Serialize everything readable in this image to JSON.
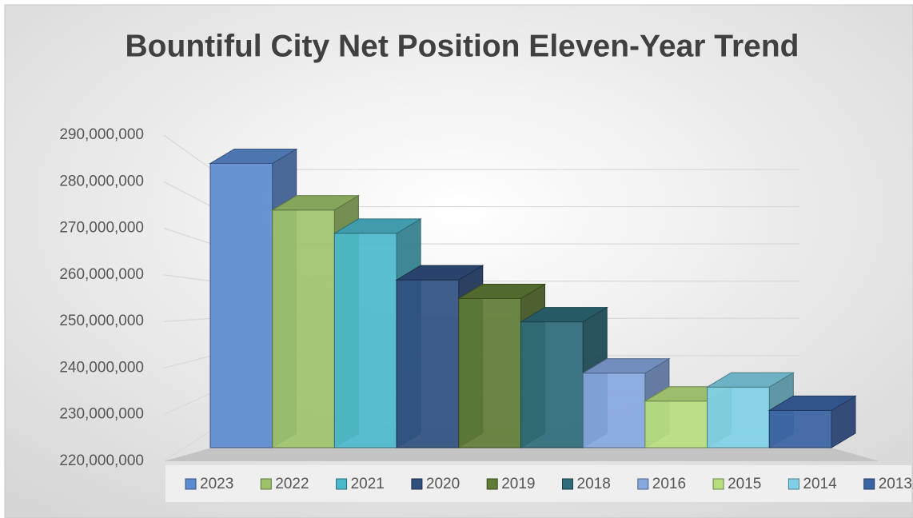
{
  "chart_data": {
    "type": "bar3d",
    "title": "Bountiful City Net Position Eleven-Year Trend",
    "categories": [
      "2023",
      "2022",
      "2021",
      "2020",
      "2019",
      "2018",
      "2016",
      "2015",
      "2014",
      "2013"
    ],
    "values": [
      281000000,
      271000000,
      266000000,
      256000000,
      252000000,
      247000000,
      236000000,
      230000000,
      233000000,
      228000000
    ],
    "colors": [
      "#5b8bd0",
      "#9dc36a",
      "#4bb8cc",
      "#2f4f7f",
      "#607c35",
      "#2d6b78",
      "#86a7e0",
      "#b7de7e",
      "#7fd0e6",
      "#3a63a3"
    ],
    "ylim": [
      220000000,
      290000000
    ],
    "yticks": [
      {
        "value": 220000000,
        "label": "220,000,000"
      },
      {
        "value": 230000000,
        "label": "230,000,000"
      },
      {
        "value": 240000000,
        "label": "240,000,000"
      },
      {
        "value": 250000000,
        "label": "250,000,000"
      },
      {
        "value": 260000000,
        "label": "260,000,000"
      },
      {
        "value": 270000000,
        "label": "270,000,000"
      },
      {
        "value": 280000000,
        "label": "280,000,000"
      },
      {
        "value": 290000000,
        "label": "290,000,000"
      }
    ],
    "grid": true,
    "legend": "bottom"
  }
}
